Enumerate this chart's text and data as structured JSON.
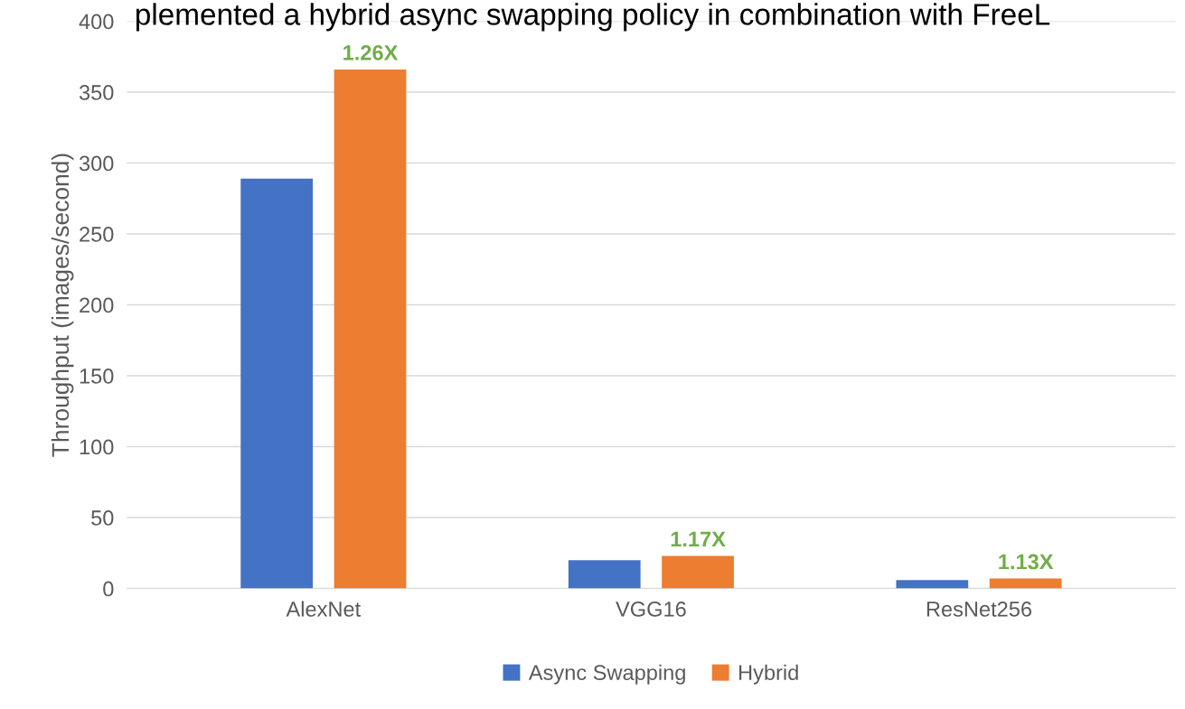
{
  "chart_data": {
    "type": "bar",
    "title": "plemented a hybrid async swapping policy in combination with FreeL",
    "ylabel": "Throughput (images/second)",
    "categories": [
      "AlexNet",
      "VGG16",
      "ResNet256"
    ],
    "series": [
      {
        "name": "Async Swapping",
        "color": "#4472c4",
        "values": [
          289,
          20,
          6
        ]
      },
      {
        "name": "Hybrid",
        "color": "#ed7d31",
        "values": [
          366,
          23,
          7
        ]
      }
    ],
    "ylim": [
      0,
      400
    ],
    "yticks": [
      0,
      50,
      100,
      150,
      200,
      250,
      300,
      350,
      400
    ],
    "grid": "y",
    "legend": "bottom",
    "annotations": [
      "1.26X",
      "1.17X",
      "1.13X"
    ]
  }
}
